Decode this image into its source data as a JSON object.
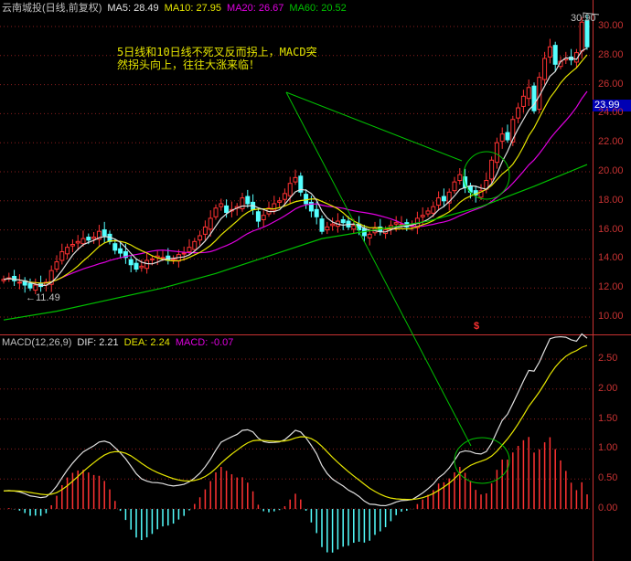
{
  "header": {
    "stock": "云南城投(日线,前复权)",
    "ma5": "MA5: 28.49",
    "ma10": "MA10: 27.95",
    "ma20": "MA20: 26.67",
    "ma60": "MA60: 20.52"
  },
  "annotation": "5日线和10日线不死叉反而拐上，MACD突然拐头向上，往往大涨来临！",
  "price_tag": "23.99",
  "max_label": "30.90",
  "min_label": "←11.49",
  "signal_marker": "$",
  "macd_header": {
    "name": "MACD(12,26,9)",
    "dif": "DIF: 2.21",
    "dea": "DEA: 2.24",
    "macd": "MACD: -0.07"
  },
  "price_axis": [
    "30.00",
    "28.00",
    "26.00",
    "24.00",
    "22.00",
    "20.00",
    "18.00",
    "16.00",
    "14.00",
    "12.00",
    "10.00"
  ],
  "macd_axis": [
    "2.50",
    "2.00",
    "1.50",
    "1.00",
    "0.50",
    "0.00"
  ],
  "colors": {
    "up": "#ff3232",
    "down": "#54ffff",
    "ma5": "#e0e0e0",
    "ma10": "#e6e600",
    "ma20": "#e000e0",
    "ma60": "#00c000",
    "grid": "#8c1e1e",
    "axis": "#c83232"
  },
  "chart_data": {
    "type": "candlestick",
    "close": [
      12.6,
      12.7,
      12.5,
      12.4,
      12.2,
      12.0,
      12.2,
      12.1,
      12.4,
      13.2,
      13.8,
      14.5,
      14.8,
      15.0,
      15.2,
      15.4,
      15.3,
      15.5,
      15.9,
      15.6,
      15.2,
      14.6,
      14.4,
      14.1,
      13.6,
      13.3,
      13.5,
      13.9,
      14.0,
      14.2,
      14.1,
      13.9,
      14.0,
      14.3,
      14.4,
      14.8,
      15.2,
      15.6,
      16.2,
      16.8,
      17.5,
      17.8,
      17.2,
      17.4,
      17.6,
      18.2,
      17.8,
      17.4,
      16.6,
      17.0,
      17.5,
      17.8,
      18.0,
      18.5,
      19.2,
      19.6,
      18.6,
      17.8,
      17.3,
      16.9,
      15.9,
      16.2,
      16.4,
      16.6,
      16.5,
      16.2,
      16.3,
      16.0,
      15.6,
      15.7,
      16.1,
      15.9,
      16.0,
      16.3,
      16.5,
      16.4,
      16.2,
      16.3,
      16.8,
      17.0,
      17.3,
      17.6,
      18.2,
      18.0,
      18.6,
      19.3,
      19.8,
      18.9,
      18.6,
      18.4,
      18.7,
      19.4,
      20.8,
      22.0,
      22.6,
      22.2,
      23.6,
      24.4,
      25.2,
      25.8,
      24.2,
      26.5,
      27.8,
      28.6,
      27.4,
      27.6,
      27.8,
      27.7,
      28.2,
      30.3,
      28.6
    ],
    "ma60_every10": [
      9.8,
      10.4,
      11.2,
      12.0,
      13.0,
      14.2,
      15.4,
      16.0,
      16.6,
      17.6,
      19.0,
      20.5
    ],
    "price_range": [
      8.8,
      31.5
    ],
    "macd_range": [
      -0.8,
      2.8
    ]
  }
}
